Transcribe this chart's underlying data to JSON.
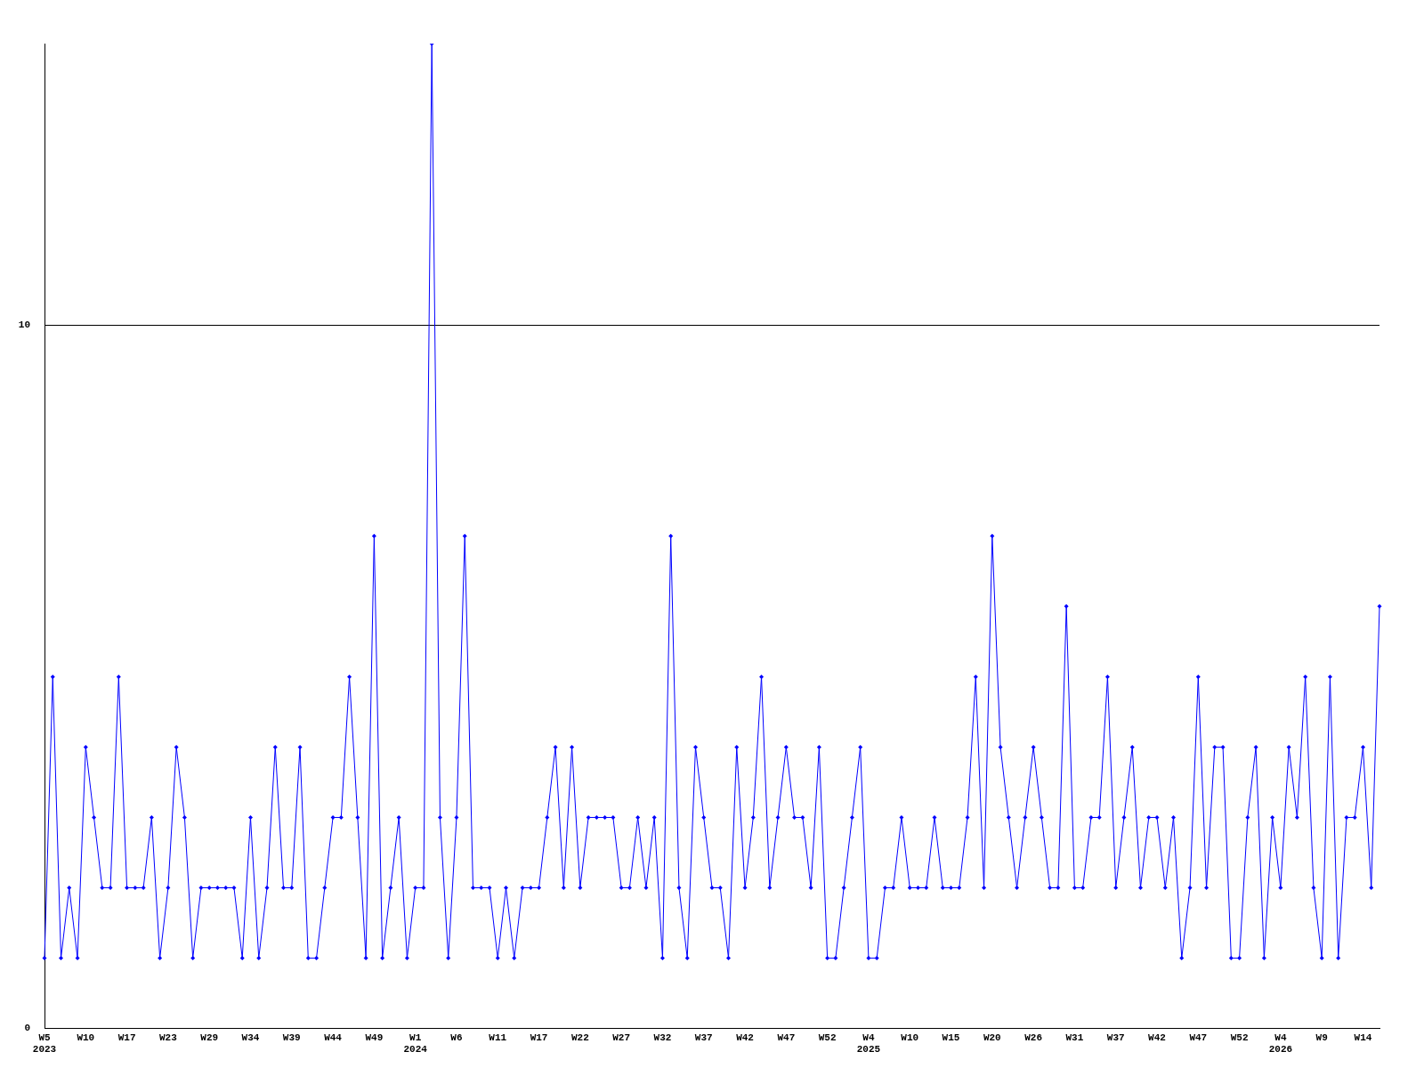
{
  "chart_data": {
    "type": "line",
    "categories": [
      "W5\n2023",
      null,
      null,
      null,
      null,
      "W10",
      null,
      null,
      null,
      null,
      "W17",
      null,
      null,
      null,
      null,
      "W23",
      null,
      null,
      null,
      null,
      "W29",
      null,
      null,
      null,
      null,
      "W34",
      null,
      null,
      null,
      null,
      "W39",
      null,
      null,
      null,
      null,
      "W44",
      null,
      null,
      null,
      null,
      "W49",
      null,
      null,
      null,
      null,
      "W1\n2024",
      null,
      null,
      null,
      null,
      "W6",
      null,
      null,
      null,
      null,
      "W11",
      null,
      null,
      null,
      null,
      "W17",
      null,
      null,
      null,
      null,
      "W22",
      null,
      null,
      null,
      null,
      "W27",
      null,
      null,
      null,
      null,
      "W32",
      null,
      null,
      null,
      null,
      "W37",
      null,
      null,
      null,
      null,
      "W42",
      null,
      null,
      null,
      null,
      "W47",
      null,
      null,
      null,
      null,
      "W52",
      null,
      null,
      null,
      null,
      "W4\n2025",
      null,
      null,
      null,
      null,
      "W10",
      null,
      null,
      null,
      null,
      "W15",
      null,
      null,
      null,
      null,
      "W20",
      null,
      null,
      null,
      null,
      "W26",
      null,
      null,
      null,
      null,
      "W31",
      null,
      null,
      null,
      null,
      "W37",
      null,
      null,
      null,
      null,
      "W42",
      null,
      null,
      null,
      null,
      "W47",
      null,
      null,
      null,
      null,
      "W52",
      null,
      null,
      null,
      null,
      "W4\n2026",
      null,
      null,
      null,
      null,
      "W9",
      null,
      null,
      null,
      null,
      "W14",
      null,
      null
    ],
    "series": [
      {
        "color": "#0000ff",
        "values": [
          1,
          5,
          1,
          2,
          1,
          4,
          3,
          2,
          2,
          5,
          2,
          2,
          2,
          3,
          1,
          2,
          4,
          3,
          1,
          2,
          2,
          2,
          2,
          2,
          1,
          3,
          1,
          2,
          4,
          2,
          2,
          4,
          1,
          1,
          2,
          3,
          3,
          5,
          3,
          1,
          7,
          1,
          2,
          3,
          1,
          2,
          2,
          14,
          3,
          1,
          3,
          7,
          2,
          2,
          2,
          1,
          2,
          1,
          2,
          2,
          2,
          3,
          4,
          2,
          4,
          2,
          3,
          3,
          3,
          3,
          2,
          2,
          3,
          2,
          3,
          1,
          7,
          2,
          1,
          4,
          3,
          2,
          2,
          1,
          4,
          2,
          3,
          5,
          2,
          3,
          4,
          3,
          3,
          2,
          4,
          1,
          1,
          2,
          3,
          4,
          1,
          1,
          2,
          2,
          3,
          2,
          2,
          2,
          3,
          2,
          2,
          2,
          3,
          5,
          2,
          7,
          4,
          3,
          2,
          3,
          4,
          3,
          2,
          2,
          6,
          2,
          2,
          3,
          3,
          5,
          2,
          3,
          4,
          2,
          3,
          3,
          2,
          3,
          1,
          2,
          5,
          2,
          4,
          4,
          1,
          1,
          3,
          4,
          1,
          3,
          2,
          4,
          3,
          5,
          2,
          1,
          5,
          1,
          3,
          3,
          4,
          2,
          6
        ]
      }
    ],
    "ylim": [
      0,
      14
    ],
    "yticks": [
      0,
      10
    ],
    "grid": "y",
    "legend": false,
    "marker": "diamond",
    "line_style": "solid"
  }
}
